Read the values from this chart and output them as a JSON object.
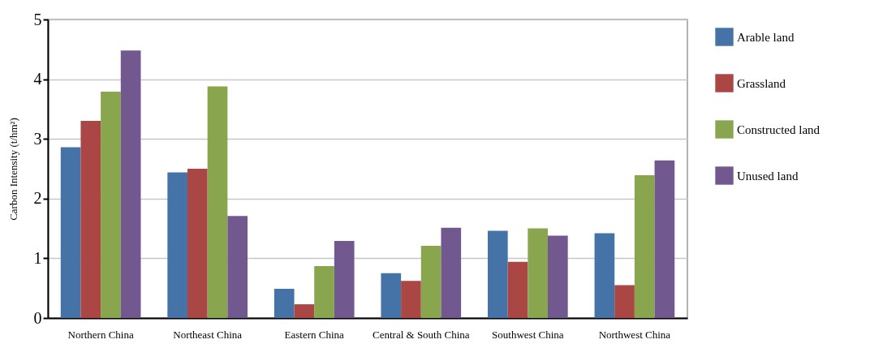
{
  "chart_data": {
    "type": "bar",
    "ylabel": "Carbon Intensity (t/hm²)",
    "categories": [
      "Northern China",
      "Northeast China",
      "Eastern China",
      "Central & South China",
      "Southwest China",
      "Northwest China"
    ],
    "series": [
      {
        "name": "Arable land",
        "color": "#4572a7",
        "values": [
          2.86,
          2.44,
          0.49,
          0.75,
          1.46,
          1.42
        ]
      },
      {
        "name": "Grassland",
        "color": "#aa4643",
        "values": [
          3.3,
          2.5,
          0.23,
          0.62,
          0.94,
          0.55
        ]
      },
      {
        "name": "Constructed land",
        "color": "#89a54e",
        "values": [
          3.79,
          3.88,
          0.87,
          1.21,
          1.5,
          2.39
        ]
      },
      {
        "name": "Unused land",
        "color": "#71588f",
        "values": [
          4.48,
          1.71,
          1.29,
          1.51,
          1.38,
          2.64
        ]
      }
    ],
    "ylim": [
      0,
      5
    ],
    "yticks": [
      0,
      1,
      2,
      3,
      4,
      5
    ],
    "grid": "y",
    "legend": "right"
  }
}
